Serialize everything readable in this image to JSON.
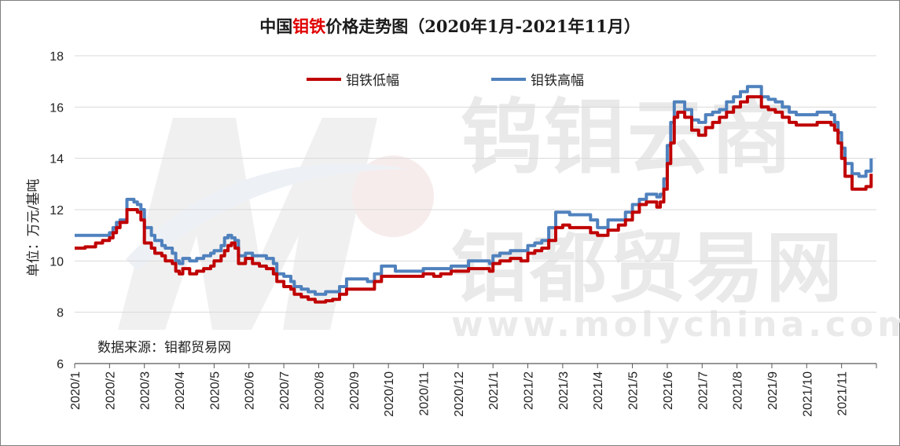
{
  "chart_data": {
    "type": "line",
    "title_prefix": "中国",
    "title_highlight": "钼铁",
    "title_suffix": "价格走势图（2020年1月-2021年11月）",
    "ylabel": "单位：万元/基吨",
    "source": "数据来源：钼都贸易网",
    "watermark_1": "钨钼云商",
    "watermark_2": "钼都贸易网",
    "watermark_3": "www.molychina.com",
    "ylim": [
      6,
      18
    ],
    "yticks": [
      "6",
      "8",
      "10",
      "12",
      "14",
      "16",
      "18"
    ],
    "xlim": [
      0,
      23
    ],
    "xticks": [
      "2020/1",
      "2020/2",
      "2020/3",
      "2020/4",
      "2020/5",
      "2020/6",
      "2020/7",
      "2020/8",
      "2020/9",
      "2020/10",
      "2020/11",
      "2020/12",
      "2021/1",
      "2021/2",
      "2021/3",
      "2021/4",
      "2021/5",
      "2021/6",
      "2021/7",
      "2021/8",
      "2021/9",
      "2021/10",
      "2021/11"
    ],
    "colors": {
      "low": "#c00000",
      "high": "#4f81bd"
    },
    "series": [
      {
        "name": "钼铁低幅",
        "x": [
          0,
          0.3,
          0.6,
          0.8,
          1.0,
          1.1,
          1.2,
          1.3,
          1.5,
          1.55,
          1.6,
          1.7,
          1.8,
          1.9,
          2.0,
          2.2,
          2.3,
          2.5,
          2.6,
          2.8,
          2.9,
          3.0,
          3.1,
          3.3,
          3.5,
          3.7,
          3.9,
          4.0,
          4.2,
          4.3,
          4.4,
          4.5,
          4.6,
          4.7,
          4.9,
          5.1,
          5.3,
          5.5,
          5.7,
          5.8,
          6.0,
          6.2,
          6.3,
          6.5,
          6.7,
          6.9,
          7.2,
          7.4,
          7.6,
          7.8,
          8.0,
          8.2,
          8.4,
          8.6,
          8.8,
          9.0,
          9.2,
          9.5,
          9.8,
          10.0,
          10.3,
          10.5,
          10.8,
          11.0,
          11.3,
          11.6,
          11.9,
          12.0,
          12.2,
          12.5,
          12.8,
          13.0,
          13.2,
          13.4,
          13.6,
          13.8,
          14.0,
          14.2,
          14.5,
          14.8,
          15.0,
          15.3,
          15.6,
          15.8,
          16.0,
          16.2,
          16.4,
          16.6,
          16.7,
          16.8,
          16.9,
          17.0,
          17.1,
          17.2,
          17.3,
          17.5,
          17.7,
          17.9,
          18.1,
          18.3,
          18.5,
          18.7,
          18.9,
          19.1,
          19.3,
          19.5,
          19.7,
          19.9,
          20.1,
          20.3,
          20.5,
          20.7,
          20.9,
          21.1,
          21.3,
          21.5,
          21.7,
          21.8,
          21.9,
          22.0,
          22.1,
          22.3,
          22.5,
          22.7,
          22.85
        ],
        "values": [
          10.5,
          10.55,
          10.7,
          10.8,
          10.9,
          11.1,
          11.3,
          11.5,
          12.0,
          12.0,
          12.0,
          12.0,
          11.9,
          11.6,
          10.7,
          10.5,
          10.3,
          10.2,
          10.0,
          9.9,
          9.6,
          9.5,
          9.7,
          9.5,
          9.6,
          9.7,
          9.8,
          10.0,
          10.2,
          10.4,
          10.6,
          10.7,
          10.5,
          9.9,
          10.1,
          9.9,
          9.8,
          9.7,
          9.5,
          9.2,
          9.0,
          8.9,
          8.7,
          8.6,
          8.5,
          8.4,
          8.45,
          8.5,
          8.7,
          8.9,
          8.9,
          8.9,
          8.9,
          9.2,
          9.4,
          9.4,
          9.4,
          9.4,
          9.4,
          9.5,
          9.4,
          9.5,
          9.6,
          9.6,
          9.7,
          9.7,
          9.6,
          9.9,
          10.0,
          10.1,
          10.0,
          10.3,
          10.4,
          10.5,
          10.8,
          11.3,
          11.4,
          11.3,
          11.3,
          11.1,
          11.0,
          11.2,
          11.4,
          11.6,
          11.9,
          12.2,
          12.3,
          12.3,
          12.1,
          12.3,
          12.8,
          13.8,
          14.6,
          15.6,
          15.8,
          15.6,
          15.1,
          14.9,
          15.2,
          15.4,
          15.6,
          15.8,
          16.0,
          16.2,
          16.4,
          16.4,
          16.0,
          15.9,
          15.8,
          15.6,
          15.4,
          15.3,
          15.3,
          15.3,
          15.4,
          15.4,
          15.3,
          15.1,
          14.6,
          14.0,
          13.3,
          12.8,
          12.8,
          12.9,
          13.4
        ],
        "y_offset_note": "low series plotted as-is"
      },
      {
        "name": "钼铁高幅",
        "x": [
          0,
          0.3,
          0.6,
          0.8,
          1.0,
          1.1,
          1.2,
          1.3,
          1.5,
          1.55,
          1.6,
          1.7,
          1.8,
          1.9,
          2.0,
          2.2,
          2.3,
          2.5,
          2.6,
          2.8,
          2.9,
          3.0,
          3.1,
          3.3,
          3.5,
          3.7,
          3.9,
          4.0,
          4.2,
          4.3,
          4.4,
          4.5,
          4.6,
          4.7,
          4.9,
          5.1,
          5.3,
          5.5,
          5.7,
          5.8,
          6.0,
          6.2,
          6.3,
          6.5,
          6.7,
          6.9,
          7.2,
          7.4,
          7.6,
          7.8,
          8.0,
          8.2,
          8.4,
          8.6,
          8.8,
          9.0,
          9.2,
          9.5,
          9.8,
          10.0,
          10.3,
          10.5,
          10.8,
          11.0,
          11.3,
          11.6,
          11.9,
          12.0,
          12.2,
          12.5,
          12.8,
          13.0,
          13.2,
          13.4,
          13.6,
          13.8,
          14.0,
          14.2,
          14.5,
          14.8,
          15.0,
          15.3,
          15.6,
          15.8,
          16.0,
          16.2,
          16.4,
          16.6,
          16.7,
          16.8,
          16.9,
          17.0,
          17.1,
          17.2,
          17.3,
          17.5,
          17.7,
          17.9,
          18.1,
          18.3,
          18.5,
          18.7,
          18.9,
          19.1,
          19.3,
          19.5,
          19.7,
          19.9,
          20.1,
          20.3,
          20.5,
          20.7,
          20.9,
          21.1,
          21.3,
          21.5,
          21.7,
          21.8,
          21.9,
          22.0,
          22.1,
          22.3,
          22.5,
          22.7,
          22.85
        ],
        "values": [
          11.0,
          11.0,
          11.0,
          11.0,
          11.1,
          11.3,
          11.5,
          11.6,
          12.4,
          12.4,
          12.4,
          12.3,
          12.2,
          12.0,
          11.3,
          11.0,
          10.8,
          10.6,
          10.5,
          10.3,
          10.0,
          9.9,
          10.1,
          10.0,
          10.1,
          10.2,
          10.3,
          10.4,
          10.6,
          10.9,
          11.0,
          10.9,
          10.8,
          10.2,
          10.3,
          10.2,
          10.2,
          10.1,
          9.9,
          9.5,
          9.4,
          9.2,
          9.0,
          8.9,
          8.8,
          8.7,
          8.8,
          8.8,
          9.0,
          9.3,
          9.3,
          9.3,
          9.2,
          9.5,
          9.8,
          9.8,
          9.6,
          9.6,
          9.6,
          9.7,
          9.7,
          9.7,
          9.8,
          9.8,
          10.0,
          10.0,
          9.9,
          10.2,
          10.3,
          10.4,
          10.4,
          10.6,
          10.7,
          10.8,
          11.3,
          11.9,
          11.9,
          11.8,
          11.8,
          11.6,
          11.3,
          11.6,
          11.6,
          11.9,
          12.2,
          12.4,
          12.6,
          12.6,
          12.5,
          12.6,
          13.2,
          14.5,
          15.4,
          16.2,
          16.2,
          15.9,
          15.5,
          15.4,
          15.7,
          15.8,
          15.9,
          16.2,
          16.4,
          16.6,
          16.8,
          16.8,
          16.4,
          16.3,
          16.2,
          16.0,
          15.8,
          15.7,
          15.7,
          15.7,
          15.8,
          15.8,
          15.7,
          15.4,
          15.0,
          14.4,
          13.8,
          13.4,
          13.3,
          13.5,
          14.0
        ],
        "y_offset_note": "high series plotted as-is"
      }
    ]
  }
}
